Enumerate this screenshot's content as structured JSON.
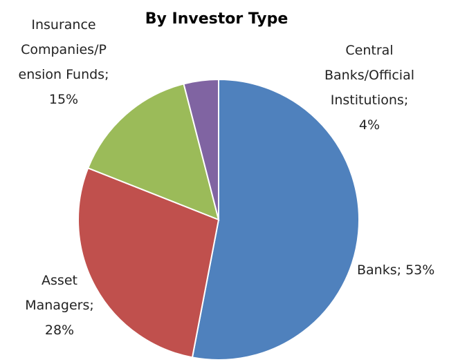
{
  "chart_data": {
    "type": "pie",
    "title": "By Investor Type",
    "values": [
      53,
      28,
      15,
      4
    ],
    "value_labels": [
      "Banks; 53%",
      "Asset Managers; 28%",
      "Insurance Companies/Pension Funds; 15%",
      "Central Banks/Official Institutions; 4%"
    ],
    "colors": [
      "#4f81bd",
      "#c0504d",
      "#9bbb59",
      "#8064a2"
    ]
  }
}
